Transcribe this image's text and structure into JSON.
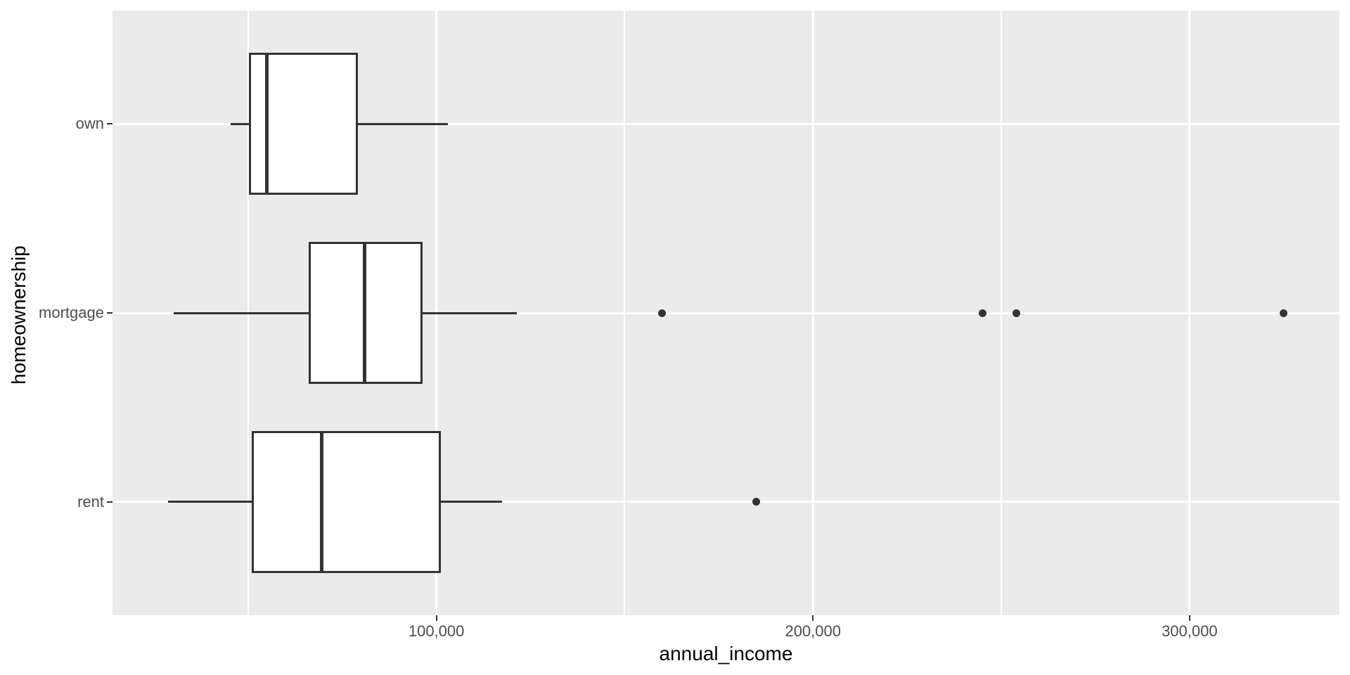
{
  "figure": {
    "background": "#FFFFFF",
    "panel_background": "#EBEBEB",
    "gridline_color": "#FFFFFF",
    "box_stroke_color": "#333333",
    "box_fill_color": "#FFFFFF",
    "outlier_color": "#333333",
    "tick_mark_color": "#333333",
    "tick_label_color": "#4D4D4D",
    "axis_title_color": "#000000"
  },
  "axes": {
    "x_title": "annual_income",
    "y_title": "homeownership",
    "x_tick_labels": [
      "100,000",
      "200,000",
      "300,000"
    ],
    "y_tick_labels": [
      "own",
      "mortgage",
      "rent"
    ]
  },
  "chart_data": {
    "type": "boxplot",
    "orientation": "horizontal",
    "title": "",
    "xlabel": "annual_income",
    "ylabel": "homeownership",
    "x_domain": [
      14000,
      339800
    ],
    "x_major_ticks": [
      100000,
      200000,
      300000
    ],
    "x_major_tick_labels": [
      "100,000",
      "200,000",
      "300,000"
    ],
    "x_minor_ticks": [
      50000,
      150000,
      250000
    ],
    "y_band_range": [
      0.4,
      3.6
    ],
    "box_half_width": 0.375,
    "grid": true,
    "legend": "none",
    "groups": [
      {
        "label": "own",
        "pos": 3,
        "whisker_min": 45400,
        "q1": 50300,
        "median": 55000,
        "q3": 79100,
        "whisker_max": 103000,
        "outliers": []
      },
      {
        "label": "mortgage",
        "pos": 2,
        "whisker_min": 30200,
        "q1": 66000,
        "median": 81000,
        "q3": 96400,
        "whisker_max": 121400,
        "outliers": [
          160000,
          245000,
          254000,
          325000
        ]
      },
      {
        "label": "rent",
        "pos": 1,
        "whisker_min": 28800,
        "q1": 50900,
        "median": 69500,
        "q3": 101200,
        "whisker_max": 117500,
        "outliers": [
          185000
        ]
      }
    ]
  }
}
